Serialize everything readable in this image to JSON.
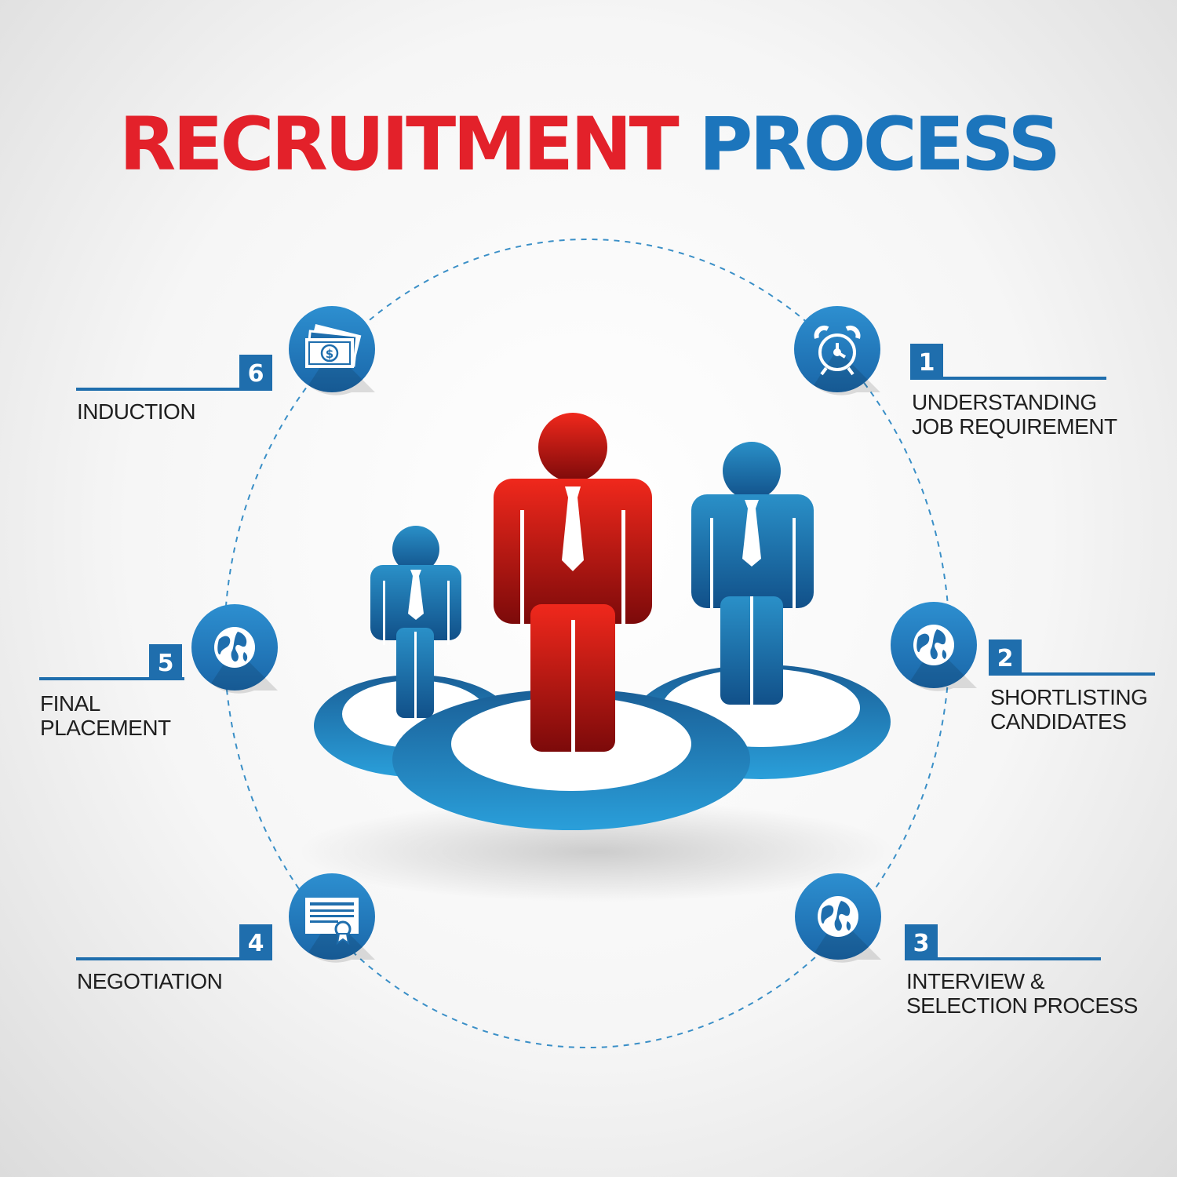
{
  "title": {
    "part1": "RECRUITMENT",
    "part2": "PROCESS"
  },
  "colors": {
    "red": "#e3212a",
    "blue": "#1c75bc",
    "dark_blue": "#1f6ead"
  },
  "steps": [
    {
      "number": "1",
      "line1": "UNDERSTANDING",
      "line2": "JOB REQUIREMENT",
      "icon": "alarm-clock-icon"
    },
    {
      "number": "2",
      "line1": "SHORTLISTING",
      "line2": "CANDIDATES",
      "icon": "globe-icon"
    },
    {
      "number": "3",
      "line1": "INTERVIEW &",
      "line2": "SELECTION PROCESS",
      "icon": "globe-icon"
    },
    {
      "number": "4",
      "line1": "NEGOTIATION",
      "line2": "",
      "icon": "certificate-icon"
    },
    {
      "number": "5",
      "line1": "FINAL",
      "line2": "PLACEMENT",
      "icon": "globe-icon"
    },
    {
      "number": "6",
      "line1": "INDUCTION",
      "line2": "",
      "icon": "money-icon"
    }
  ]
}
